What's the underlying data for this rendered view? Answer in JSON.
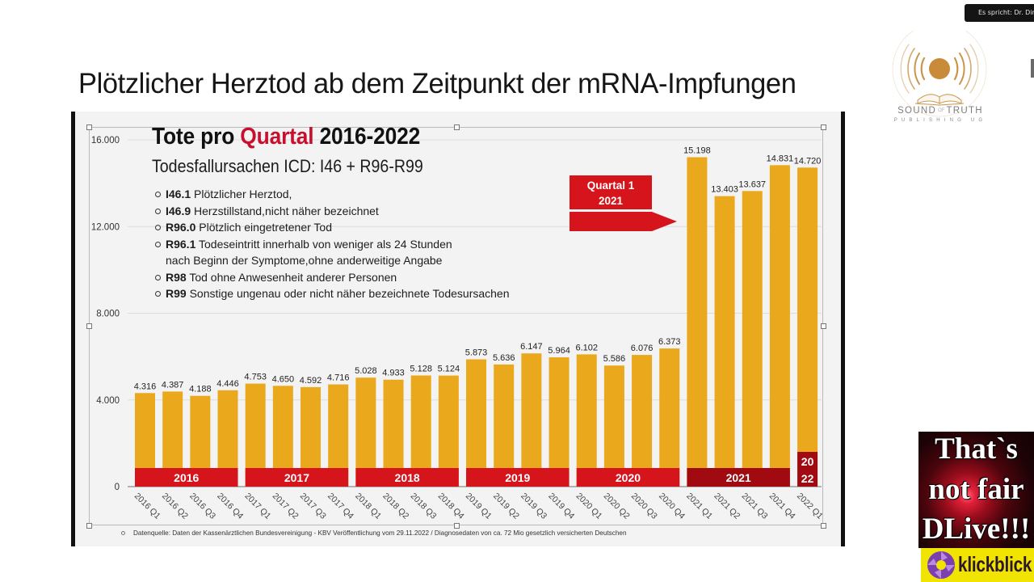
{
  "page": {
    "heading": "Plötzlicher Herztod ab dem Zeitpunkt der mRNA-Impfungen"
  },
  "speaker_badge": "Es spricht: Dr. Dir",
  "logo": {
    "word1": "SOUND",
    "of": "OF",
    "word2": "TRUTH",
    "tagline": "PUBLISHING UG",
    "accent_color": "#C98A3A"
  },
  "overlay_banner": {
    "lines": [
      "That`s",
      "not fair",
      "DLive!!!"
    ],
    "brand": "klickblick",
    "brand_bg": "#F1E400",
    "brand_icon_color": "#7B3FB0"
  },
  "slide": {
    "icd_codes": [
      {
        "code": "I46.1",
        "text": " Plötzlicher Herztod,"
      },
      {
        "code": "I46.9",
        "text": " Herzstillstand,nicht näher bezeichnet"
      },
      {
        "code": "R96.0",
        "text": " Plötzlich eingetretener Tod"
      },
      {
        "code": "R96.1",
        "text": " Todeseintritt innerhalb von weniger als 24 Stunden",
        "continuation": "nach Beginn der Symptome,ohne anderweitige Angabe"
      },
      {
        "code": "R98",
        "text": " Tod ohne Anwesenheit anderer Personen"
      },
      {
        "code": "R99",
        "text": " Sonstige ungenau oder nicht näher bezeichnete Todesursachen"
      }
    ]
  },
  "chart_data": {
    "type": "bar",
    "title": "Tote pro Quartal 2016-2022",
    "title_parts": [
      "Tote pro ",
      "Quartal",
      " 2016-2022"
    ],
    "subtitle": "Todesfallursachen ICD: I46 + R96-R99",
    "xlabel": "",
    "ylabel": "",
    "ylim": [
      0,
      16000
    ],
    "yticks": [
      0,
      4000,
      8000,
      12000,
      16000
    ],
    "ytick_labels": [
      "0",
      "4.000",
      "8.000",
      "12.000",
      "16.000"
    ],
    "grid": true,
    "categories": [
      "2016 Q1",
      "2016 Q2",
      "2016 Q3",
      "2016 Q4",
      "2017 Q1",
      "2017 Q2",
      "2017 Q3",
      "2017 Q4",
      "2018 Q1",
      "2018 Q2",
      "2018 Q3",
      "2018 Q4",
      "2019 Q1",
      "2019 Q2",
      "2019 Q3",
      "2019 Q4",
      "2020 Q1",
      "2020 Q2",
      "2020 Q3",
      "2020 Q4",
      "2021 Q1",
      "2021 Q2",
      "2021 Q3",
      "2021 Q4",
      "2022 Q1"
    ],
    "values": [
      4316,
      4387,
      4188,
      4446,
      4753,
      4650,
      4592,
      4716,
      5028,
      4933,
      5128,
      5124,
      5873,
      5636,
      6147,
      5964,
      6102,
      5586,
      6076,
      6373,
      15198,
      13403,
      13637,
      14831,
      14720
    ],
    "value_labels": [
      "4.316",
      "4.387",
      "4.188",
      "4.446",
      "4.753",
      "4.650",
      "4.592",
      "4.716",
      "5.028",
      "4.933",
      "5.128",
      "5.124",
      "5.873",
      "5.636",
      "6.147",
      "5.964",
      "6.102",
      "5.586",
      "6.076",
      "6.373",
      "15.198",
      "13.403",
      "13.637",
      "14.831",
      "14.720"
    ],
    "year_groups": [
      {
        "label": "2016",
        "start": 0,
        "count": 4
      },
      {
        "label": "2017",
        "start": 4,
        "count": 4
      },
      {
        "label": "2018",
        "start": 8,
        "count": 4
      },
      {
        "label": "2019",
        "start": 12,
        "count": 4
      },
      {
        "label": "2020",
        "start": 16,
        "count": 4
      },
      {
        "label": "2021",
        "start": 20,
        "count": 4,
        "highlight": true
      },
      {
        "label": "2022",
        "start": 24,
        "count": 1,
        "label_lines": [
          "20",
          "22"
        ],
        "highlight": true
      }
    ],
    "annotation": {
      "lines": [
        "Quartal 1",
        "2021"
      ],
      "target": "2021 Q1",
      "type": "arrow"
    },
    "colors": {
      "bar": "#EAA81C",
      "year_band": "#D6141C",
      "year_band_highlight": "#A00A10",
      "title_accent": "#C8102E",
      "annotation": "#D6141C"
    },
    "legend": "none",
    "source": "Datenquelle: Daten der Kassenärztlichen Bundesvereinigung - KBV Veröffentlichung vom 29.11.2022 / Diagnosedaten von ca. 72 Mio gesetzlich versicherten Deutschen"
  }
}
